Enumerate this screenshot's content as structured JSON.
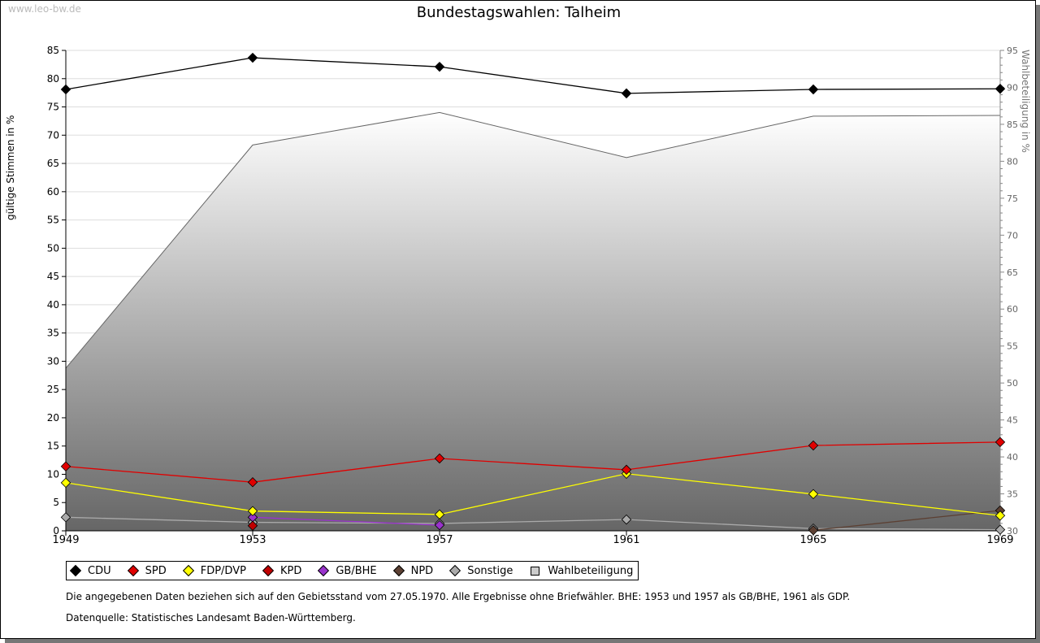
{
  "watermark": "www.leo-bw.de",
  "chart_data": {
    "type": "line",
    "title": "Bundestagswahlen: Talheim",
    "ylabel": "gültige Stimmen in %",
    "y2label": "Wahlbeteiligung in %",
    "ylim": [
      0,
      85
    ],
    "y2lim": [
      30,
      95
    ],
    "yticks": [
      0,
      5,
      10,
      15,
      20,
      25,
      30,
      35,
      40,
      45,
      50,
      55,
      60,
      65,
      70,
      75,
      80,
      85
    ],
    "y2ticks": [
      30,
      35,
      40,
      45,
      50,
      55,
      60,
      65,
      70,
      75,
      80,
      85,
      90,
      95
    ],
    "x": [
      "1949",
      "1953",
      "1957",
      "1961",
      "1965",
      "1969"
    ],
    "series": [
      {
        "name": "CDU",
        "color": "#000000",
        "values": [
          78.1,
          83.7,
          82.1,
          77.4,
          78.1,
          78.2
        ]
      },
      {
        "name": "SPD",
        "color": "#e00000",
        "values": [
          11.4,
          8.6,
          12.8,
          10.8,
          15.1,
          15.7
        ]
      },
      {
        "name": "FDP/DVP",
        "color": "#ffff00",
        "values": [
          8.5,
          3.5,
          2.9,
          10.1,
          6.5,
          2.7
        ]
      },
      {
        "name": "KPD",
        "color": "#c00000",
        "values": [
          null,
          0.9,
          null,
          null,
          null,
          null
        ]
      },
      {
        "name": "GB/BHE",
        "color": "#9933cc",
        "values": [
          null,
          2.4,
          1.0,
          null,
          null,
          null
        ]
      },
      {
        "name": "NPD",
        "color": "#5c4033",
        "values": [
          null,
          null,
          null,
          null,
          0.1,
          3.6
        ]
      },
      {
        "name": "Sonstige",
        "color": "#aaaaaa",
        "values": [
          2.4,
          1.5,
          1.3,
          2.0,
          0.4,
          0.2
        ]
      }
    ],
    "area": {
      "name": "Wahlbeteiligung",
      "axis": "right",
      "values": [
        52.0,
        82.2,
        86.6,
        80.5,
        86.1,
        86.2
      ]
    },
    "legend": "bottom-left"
  },
  "notes": [
    "Die angegebenen Daten beziehen sich auf den Gebietsstand vom 27.05.1970. Alle Ergebnisse ohne Briefwähler. BHE: 1953 und 1957 als GB/BHE, 1961 als GDP.",
    "Datenquelle: Statistisches Landesamt Baden-Württemberg."
  ]
}
